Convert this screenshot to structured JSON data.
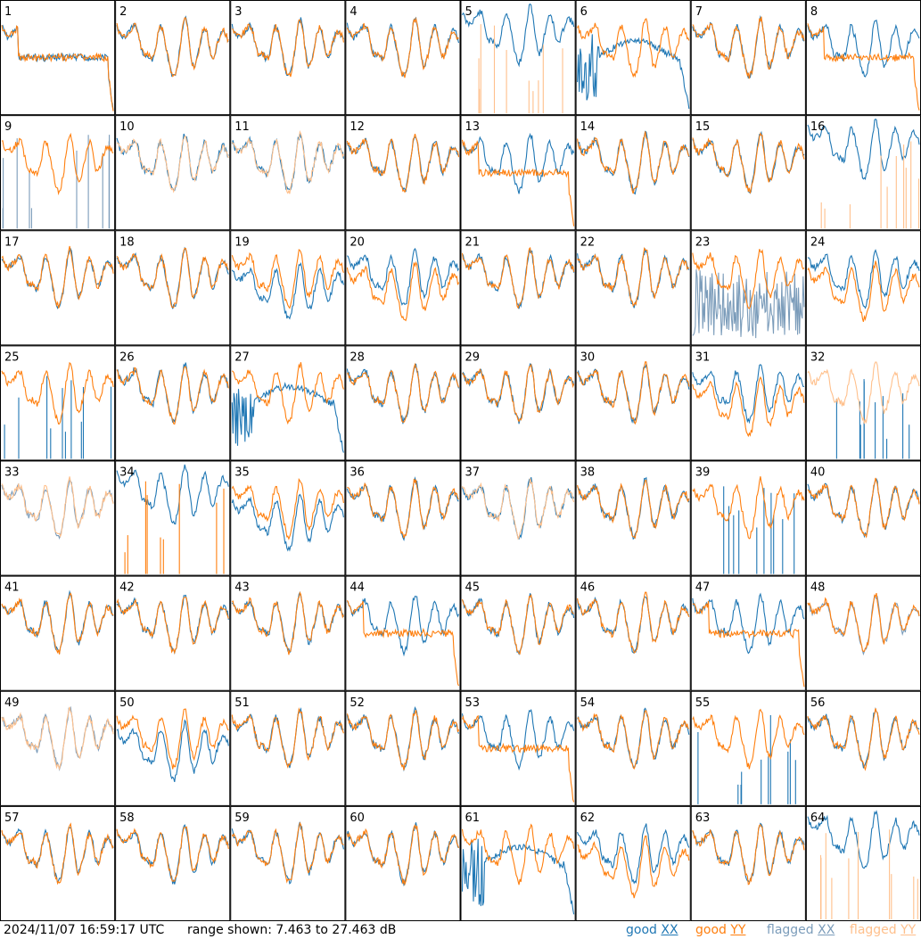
{
  "footer": {
    "timestamp": "2024/11/07 16:59:17 UTC",
    "range_text": "range shown: 7.463 to 27.463 dB"
  },
  "legend": [
    {
      "key": "good_xx",
      "text": "good ",
      "pol": "XX",
      "color": "#1f77b4"
    },
    {
      "key": "good_yy",
      "text": "good ",
      "pol": "YY",
      "color": "#ff7f0e"
    },
    {
      "key": "flagged_xx",
      "text": "flagged ",
      "pol": "XX",
      "color": "#7b9cba"
    },
    {
      "key": "flagged_yy",
      "text": "flagged ",
      "pol": "YY",
      "color": "#ffc08c"
    }
  ],
  "colors": {
    "good_xx": "#1f77b4",
    "good_yy": "#ff7f0e",
    "flagged_xx": "#7b9cba",
    "flagged_yy": "#ffc08c"
  },
  "chart_data": {
    "type": "line",
    "layout": "8x8 small multiples",
    "ylim_db": [
      7.463,
      27.463
    ],
    "tiles": [
      {
        "id": "1",
        "xx": "flat",
        "yy": "flat"
      },
      {
        "id": "2",
        "xx": "good",
        "yy": "good"
      },
      {
        "id": "3",
        "xx": "good",
        "yy": "good"
      },
      {
        "id": "4",
        "xx": "good",
        "yy": "good"
      },
      {
        "id": "5",
        "xx": "good_high",
        "yy": "spikes_flagged"
      },
      {
        "id": "6",
        "xx": "dropout",
        "yy": "good"
      },
      {
        "id": "7",
        "xx": "good",
        "yy": "good"
      },
      {
        "id": "8",
        "xx": "good",
        "yy": "flat"
      },
      {
        "id": "9",
        "xx": "spikes_flagged",
        "yy": "good"
      },
      {
        "id": "10",
        "xx": "good",
        "yy": "good_flagged"
      },
      {
        "id": "11",
        "xx": "good",
        "yy": "good_flagged"
      },
      {
        "id": "12",
        "xx": "good",
        "yy": "good"
      },
      {
        "id": "13",
        "xx": "good",
        "yy": "flat"
      },
      {
        "id": "14",
        "xx": "good",
        "yy": "good"
      },
      {
        "id": "15",
        "xx": "good",
        "yy": "good"
      },
      {
        "id": "16",
        "xx": "good_high",
        "yy": "spikes_flagged"
      },
      {
        "id": "17",
        "xx": "good",
        "yy": "good"
      },
      {
        "id": "18",
        "xx": "good",
        "yy": "good"
      },
      {
        "id": "19",
        "xx": "good_low",
        "yy": "good"
      },
      {
        "id": "20",
        "xx": "good",
        "yy": "good_low"
      },
      {
        "id": "21",
        "xx": "good",
        "yy": "good"
      },
      {
        "id": "22",
        "xx": "good",
        "yy": "good"
      },
      {
        "id": "23",
        "xx": "noise_flagged",
        "yy": "good"
      },
      {
        "id": "24",
        "xx": "good",
        "yy": "good_low"
      },
      {
        "id": "25",
        "xx": "spikes",
        "yy": "good"
      },
      {
        "id": "26",
        "xx": "good",
        "yy": "good"
      },
      {
        "id": "27",
        "xx": "dropout",
        "yy": "good"
      },
      {
        "id": "28",
        "xx": "good",
        "yy": "good"
      },
      {
        "id": "29",
        "xx": "good",
        "yy": "good"
      },
      {
        "id": "30",
        "xx": "good",
        "yy": "good"
      },
      {
        "id": "31",
        "xx": "good",
        "yy": "good_low"
      },
      {
        "id": "32",
        "xx": "spikes",
        "yy": "good_flagged"
      },
      {
        "id": "33",
        "xx": "good_flagged",
        "yy": "good_flagged"
      },
      {
        "id": "34",
        "xx": "good_high",
        "yy": "spikes"
      },
      {
        "id": "35",
        "xx": "good_low",
        "yy": "good"
      },
      {
        "id": "36",
        "xx": "good",
        "yy": "good"
      },
      {
        "id": "37",
        "xx": "good",
        "yy": "good_flagged"
      },
      {
        "id": "38",
        "xx": "good",
        "yy": "good"
      },
      {
        "id": "39",
        "xx": "spikes",
        "yy": "good"
      },
      {
        "id": "40",
        "xx": "good",
        "yy": "good"
      },
      {
        "id": "41",
        "xx": "good",
        "yy": "good"
      },
      {
        "id": "42",
        "xx": "good",
        "yy": "good"
      },
      {
        "id": "43",
        "xx": "good",
        "yy": "good"
      },
      {
        "id": "44",
        "xx": "good",
        "yy": "flat"
      },
      {
        "id": "45",
        "xx": "good",
        "yy": "good"
      },
      {
        "id": "46",
        "xx": "good",
        "yy": "good"
      },
      {
        "id": "47",
        "xx": "good",
        "yy": "flat"
      },
      {
        "id": "48",
        "xx": "good_flagged",
        "yy": "good"
      },
      {
        "id": "49",
        "xx": "good_flagged",
        "yy": "good_flagged"
      },
      {
        "id": "50",
        "xx": "good_low",
        "yy": "good"
      },
      {
        "id": "51",
        "xx": "good",
        "yy": "good"
      },
      {
        "id": "52",
        "xx": "good",
        "yy": "good"
      },
      {
        "id": "53",
        "xx": "good",
        "yy": "flat"
      },
      {
        "id": "54",
        "xx": "good",
        "yy": "good"
      },
      {
        "id": "55",
        "xx": "spikes",
        "yy": "good"
      },
      {
        "id": "56",
        "xx": "good",
        "yy": "good"
      },
      {
        "id": "57",
        "xx": "good",
        "yy": "good"
      },
      {
        "id": "58",
        "xx": "good",
        "yy": "good"
      },
      {
        "id": "59",
        "xx": "good",
        "yy": "good"
      },
      {
        "id": "60",
        "xx": "good",
        "yy": "good"
      },
      {
        "id": "61",
        "xx": "dropout",
        "yy": "good"
      },
      {
        "id": "62",
        "xx": "good",
        "yy": "good_low"
      },
      {
        "id": "63",
        "xx": "good",
        "yy": "good"
      },
      {
        "id": "64",
        "xx": "good_high",
        "yy": "spikes_flagged"
      }
    ]
  }
}
